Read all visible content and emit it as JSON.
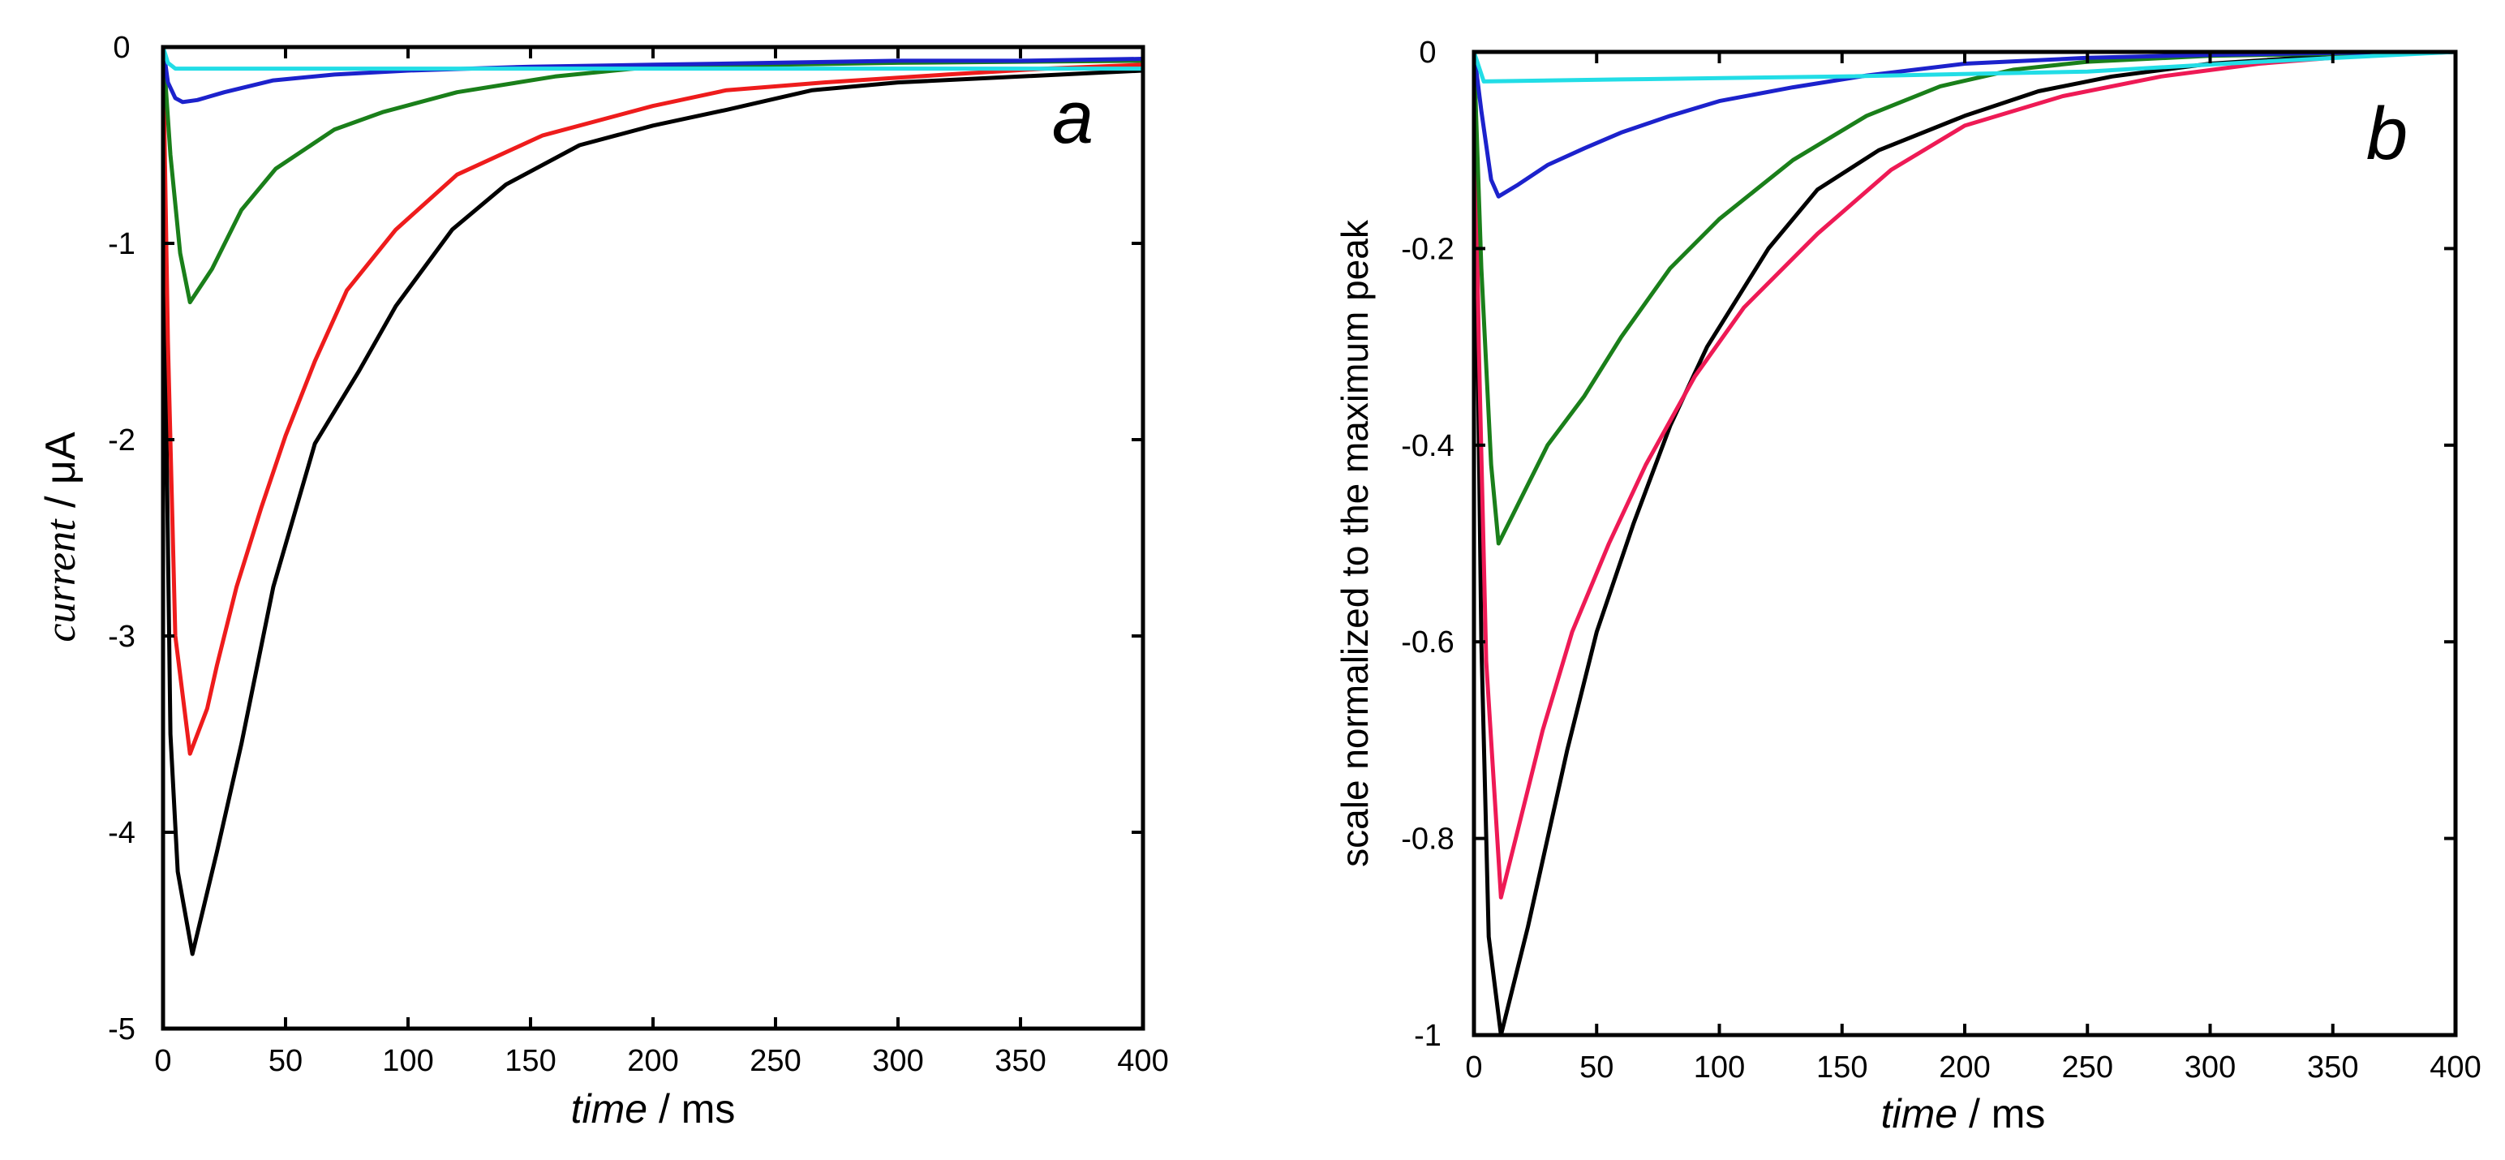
{
  "chart_data": [
    {
      "panel": "a",
      "type": "line",
      "panel_letter": "a",
      "xlabel_main": "time",
      "xlabel_unit": " / ms",
      "ylabel_main": "current",
      "ylabel_unit": " / μA",
      "xlim": [
        0,
        400
      ],
      "ylim": [
        -5,
        0
      ],
      "xticks": [
        0,
        50,
        100,
        150,
        200,
        250,
        300,
        350,
        400
      ],
      "yticks": [
        0,
        -1,
        -2,
        -3,
        -4,
        -5
      ],
      "xtick_labels": [
        "0",
        "50",
        "100",
        "150",
        "200",
        "250",
        "300",
        "350",
        "400"
      ],
      "ytick_labels": [
        "0",
        "-1",
        "-2",
        "-3",
        "-4",
        "-5"
      ],
      "grid": false,
      "series": [
        {
          "name": "black",
          "color": "#000000",
          "x": [
            0,
            1,
            3,
            6,
            12,
            22,
            32,
            45,
            62,
            80,
            95,
            118,
            140,
            170,
            200,
            230,
            265,
            300,
            350,
            400
          ],
          "y": [
            0,
            -1.6,
            -3.5,
            -4.2,
            -4.62,
            -4.1,
            -3.55,
            -2.75,
            -2.02,
            -1.65,
            -1.32,
            -0.93,
            -0.7,
            -0.5,
            -0.4,
            -0.32,
            -0.22,
            -0.18,
            -0.15,
            -0.12
          ]
        },
        {
          "name": "red",
          "color": "#ee1c1c",
          "x": [
            0,
            2,
            5,
            11,
            18,
            22,
            30,
            40,
            50,
            62,
            75,
            95,
            120,
            155,
            200,
            230,
            270,
            320,
            360,
            400
          ],
          "y": [
            0,
            -1.5,
            -3.0,
            -3.6,
            -3.37,
            -3.15,
            -2.75,
            -2.35,
            -1.98,
            -1.6,
            -1.24,
            -0.93,
            -0.65,
            -0.45,
            -0.3,
            -0.22,
            -0.18,
            -0.14,
            -0.11,
            -0.09
          ]
        },
        {
          "name": "green",
          "color": "#1a7f1a",
          "x": [
            0,
            3,
            7,
            11,
            20,
            32,
            46,
            70,
            90,
            120,
            160,
            200,
            250,
            300,
            400
          ],
          "y": [
            0,
            -0.55,
            -1.05,
            -1.3,
            -1.13,
            -0.83,
            -0.62,
            -0.42,
            -0.33,
            -0.23,
            -0.15,
            -0.1,
            -0.09,
            -0.08,
            -0.07
          ]
        },
        {
          "name": "blue",
          "color": "#1c22cc",
          "x": [
            0,
            2,
            5,
            8,
            14,
            25,
            45,
            70,
            100,
            150,
            200,
            250,
            300,
            350,
            400
          ],
          "y": [
            0,
            -0.18,
            -0.26,
            -0.28,
            -0.27,
            -0.23,
            -0.17,
            -0.14,
            -0.12,
            -0.1,
            -0.09,
            -0.08,
            -0.07,
            -0.07,
            -0.06
          ]
        },
        {
          "name": "cyan",
          "color": "#22dde6",
          "x": [
            0,
            2,
            5,
            400
          ],
          "y": [
            0,
            -0.08,
            -0.11,
            -0.11
          ]
        }
      ]
    },
    {
      "panel": "b",
      "type": "line",
      "panel_letter": "b",
      "xlabel_main": "time",
      "xlabel_unit": " / ms",
      "ylabel": "scale normalized to the maximum peak",
      "xlim": [
        0,
        400
      ],
      "ylim": [
        -1,
        0
      ],
      "xticks": [
        0,
        50,
        100,
        150,
        200,
        250,
        300,
        350,
        400
      ],
      "yticks": [
        0,
        -0.2,
        -0.4,
        -0.6,
        -0.8,
        -1
      ],
      "xtick_labels": [
        "0",
        "50",
        "100",
        "150",
        "200",
        "250",
        "300",
        "350",
        "400"
      ],
      "ytick_labels": [
        "0",
        "-0.2",
        "-0.4",
        "-0.6",
        "-0.8",
        "-1"
      ],
      "grid": false,
      "series": [
        {
          "name": "black",
          "color": "#000000",
          "x": [
            0,
            3,
            6,
            11,
            22,
            38,
            50,
            65,
            80,
            95,
            120,
            140,
            165,
            200,
            230,
            260,
            300,
            350,
            400
          ],
          "y": [
            0,
            -0.6,
            -0.9,
            -1.0,
            -0.89,
            -0.71,
            -0.59,
            -0.48,
            -0.38,
            -0.3,
            -0.2,
            -0.14,
            -0.1,
            -0.065,
            -0.04,
            -0.025,
            -0.012,
            -0.004,
            0
          ]
        },
        {
          "name": "red",
          "color": "#ee1a55",
          "x": [
            0,
            2,
            5,
            11,
            18,
            28,
            40,
            55,
            70,
            90,
            110,
            140,
            170,
            200,
            240,
            280,
            320,
            360,
            400
          ],
          "y": [
            0,
            -0.3,
            -0.62,
            -0.86,
            -0.79,
            -0.69,
            -0.59,
            -0.5,
            -0.42,
            -0.33,
            -0.26,
            -0.185,
            -0.12,
            -0.075,
            -0.045,
            -0.025,
            -0.012,
            -0.004,
            0
          ]
        },
        {
          "name": "green",
          "color": "#1a7f1a",
          "x": [
            0,
            3,
            7,
            10,
            20,
            30,
            45,
            60,
            80,
            100,
            130,
            160,
            190,
            220,
            250,
            300,
            400
          ],
          "y": [
            0,
            -0.22,
            -0.42,
            -0.5,
            -0.45,
            -0.4,
            -0.35,
            -0.29,
            -0.22,
            -0.17,
            -0.11,
            -0.065,
            -0.035,
            -0.018,
            -0.01,
            -0.004,
            0
          ]
        },
        {
          "name": "blue",
          "color": "#1c22cc",
          "x": [
            0,
            3,
            7,
            10,
            18,
            30,
            45,
            60,
            80,
            100,
            130,
            160,
            200,
            250,
            300,
            350,
            400
          ],
          "y": [
            0,
            -0.06,
            -0.13,
            -0.147,
            -0.135,
            -0.115,
            -0.098,
            -0.082,
            -0.065,
            -0.05,
            -0.036,
            -0.024,
            -0.012,
            -0.006,
            -0.003,
            -0.001,
            0
          ]
        },
        {
          "name": "cyan",
          "color": "#22dde6",
          "x": [
            0,
            4,
            60,
            150,
            250,
            320,
            400
          ],
          "y": [
            0,
            -0.03,
            -0.028,
            -0.025,
            -0.02,
            -0.01,
            0
          ]
        }
      ]
    }
  ]
}
